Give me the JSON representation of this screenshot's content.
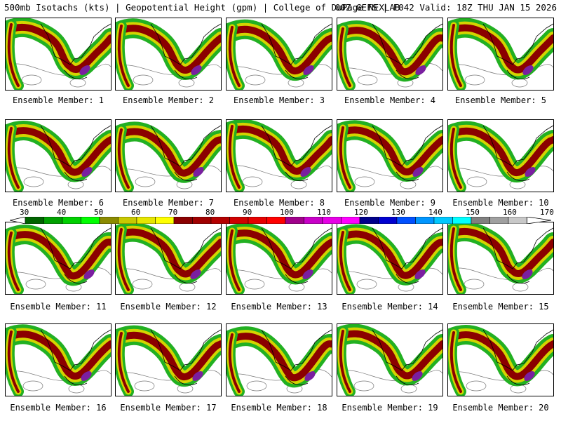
{
  "header": {
    "left": "500mb Isotachs (kts) | Geopotential Height (gpm) | College of DuPage NEXLAB",
    "right": "00Z GEFS | F042 Valid: 18Z THU JAN 15 2026"
  },
  "panels": [
    {
      "caption": "Ensemble Member: 1"
    },
    {
      "caption": "Ensemble Member: 2"
    },
    {
      "caption": "Ensemble Member: 3"
    },
    {
      "caption": "Ensemble Member: 4"
    },
    {
      "caption": "Ensemble Member: 5"
    },
    {
      "caption": "Ensemble Member: 6"
    },
    {
      "caption": "Ensemble Member: 7"
    },
    {
      "caption": "Ensemble Member: 8"
    },
    {
      "caption": "Ensemble Member: 9"
    },
    {
      "caption": "Ensemble Member: 10"
    },
    {
      "caption": "Ensemble Member: 11"
    },
    {
      "caption": "Ensemble Member: 12"
    },
    {
      "caption": "Ensemble Member: 13"
    },
    {
      "caption": "Ensemble Member: 14"
    },
    {
      "caption": "Ensemble Member: 15"
    },
    {
      "caption": "Ensemble Member: 16"
    },
    {
      "caption": "Ensemble Member: 17"
    },
    {
      "caption": "Ensemble Member: 18"
    },
    {
      "caption": "Ensemble Member: 19"
    },
    {
      "caption": "Ensemble Member: 20"
    }
  ],
  "colorbar": {
    "labels": [
      "30",
      "40",
      "50",
      "60",
      "70",
      "80",
      "90",
      "100",
      "110",
      "120",
      "130",
      "140",
      "150",
      "160",
      "170"
    ],
    "colors": [
      "#006400",
      "#00a000",
      "#00d000",
      "#00ff00",
      "#8b8b00",
      "#c8c800",
      "#e6e600",
      "#ffff00",
      "#8b0000",
      "#a00000",
      "#b40000",
      "#d00000",
      "#e60000",
      "#ff0000",
      "#a0008b",
      "#c800c8",
      "#e600e6",
      "#ff00ff",
      "#00008b",
      "#0000d0",
      "#0050ff",
      "#0096ff",
      "#00c8ff",
      "#00ffff",
      "#808080",
      "#a0a0a0",
      "#c8c8c8"
    ]
  },
  "colors": {
    "green": "#22b022",
    "dark_green": "#006400",
    "yellow": "#d4d400",
    "red": "#8b0000",
    "purple": "#7a1fa0"
  }
}
